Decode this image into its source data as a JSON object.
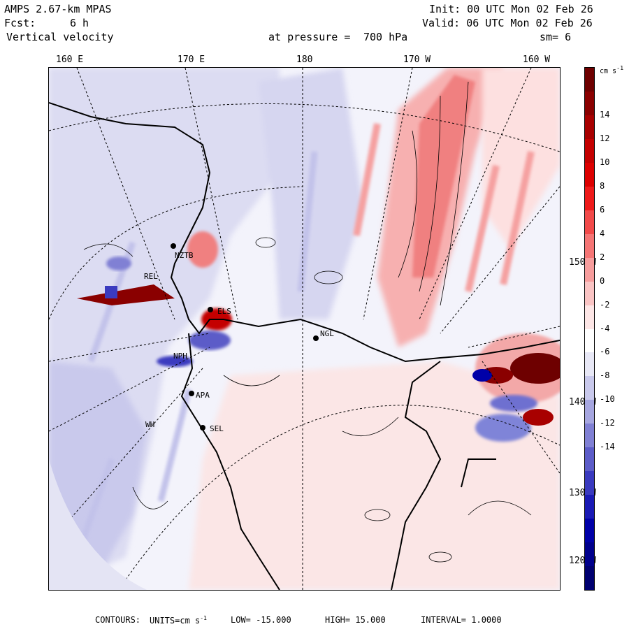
{
  "header": {
    "model": "AMPS 2.67-km MPAS",
    "forecast_label": "Fcst:",
    "forecast_hours": "6 h",
    "field": "Vertical velocity",
    "init": "Init: 00 UTC Mon 02 Feb 26",
    "valid": "Valid: 06 UTC Mon 02 Feb 26",
    "pressure_label": "at pressure =",
    "pressure_value": "700 hPa",
    "smoothing": "sm= 6"
  },
  "lon_labels": [
    "160 E",
    "170 E",
    "180",
    "170 W",
    "160 W"
  ],
  "lat_labels": [
    "150 W",
    "140 W",
    "130 W",
    "120 W"
  ],
  "stations": [
    "NZTB",
    "REL",
    "ELS",
    "NGL",
    "NPH",
    "APA",
    "WH",
    "SEL"
  ],
  "colorbar": {
    "unit": "cm s",
    "unit_exp": "-1",
    "labels": [
      "14",
      "12",
      "10",
      "8",
      "6",
      "4",
      "2",
      "0",
      "-2",
      "-4",
      "-6",
      "-8",
      "-10",
      "-12",
      "-14"
    ],
    "colors": [
      "#6e0000",
      "#8a0000",
      "#a80000",
      "#c40000",
      "#dc0000",
      "#ee1a1a",
      "#f24a4a",
      "#f57575",
      "#f79d9d",
      "#fac4c4",
      "#fde6e6",
      "#ffffff",
      "#e8e8f6",
      "#c9c9ec",
      "#a6a6e0",
      "#8080d4",
      "#5c5cc8",
      "#3a3abf",
      "#1a1ab5",
      "#0000a8",
      "#00008c",
      "#000070"
    ]
  },
  "footer": {
    "contours_label": "CONTOURS:",
    "units_label": "UNITS=cm s",
    "units_exp": "-1",
    "low": "LOW= -15.000",
    "high": "HIGH= 15.000",
    "interval": "INTERVAL= 1.0000"
  }
}
